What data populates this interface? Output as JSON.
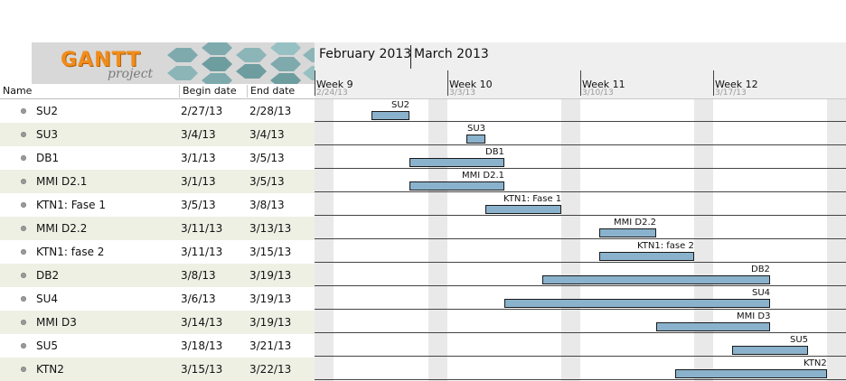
{
  "logo": {
    "brand": "GANTT",
    "sub": "project"
  },
  "columns": {
    "name": "Name",
    "begin": "Begin date",
    "end": "End date"
  },
  "timeline": {
    "months": [
      "February 2013",
      "March 2013"
    ],
    "weeks": [
      {
        "label": "Week 9",
        "date": "2/24/13"
      },
      {
        "label": "Week 10",
        "date": "3/3/13"
      },
      {
        "label": "Week 11",
        "date": "3/10/13"
      },
      {
        "label": "Week 12",
        "date": "3/17/13"
      }
    ]
  },
  "tasks": [
    {
      "name": "SU2",
      "begin": "2/27/13",
      "end": "2/28/13"
    },
    {
      "name": "SU3",
      "begin": "3/4/13",
      "end": "3/4/13"
    },
    {
      "name": "DB1",
      "begin": "3/1/13",
      "end": "3/5/13"
    },
    {
      "name": "MMI D2.1",
      "begin": "3/1/13",
      "end": "3/5/13"
    },
    {
      "name": "KTN1: Fase 1",
      "begin": "3/5/13",
      "end": "3/8/13"
    },
    {
      "name": "MMI D2.2",
      "begin": "3/11/13",
      "end": "3/13/13"
    },
    {
      "name": "KTN1: fase 2",
      "begin": "3/11/13",
      "end": "3/15/13"
    },
    {
      "name": "DB2",
      "begin": "3/8/13",
      "end": "3/19/13"
    },
    {
      "name": "SU4",
      "begin": "3/6/13",
      "end": "3/19/13"
    },
    {
      "name": "MMI D3",
      "begin": "3/14/13",
      "end": "3/19/13"
    },
    {
      "name": "SU5",
      "begin": "3/18/13",
      "end": "3/21/13"
    },
    {
      "name": "KTN2",
      "begin": "3/15/13",
      "end": "3/22/13"
    }
  ],
  "colors": {
    "bar": "#8ab2cc",
    "alt_row": "#eff0e4",
    "weekend": "#e9e9e9",
    "logo_orange": "#f08c1c"
  }
}
